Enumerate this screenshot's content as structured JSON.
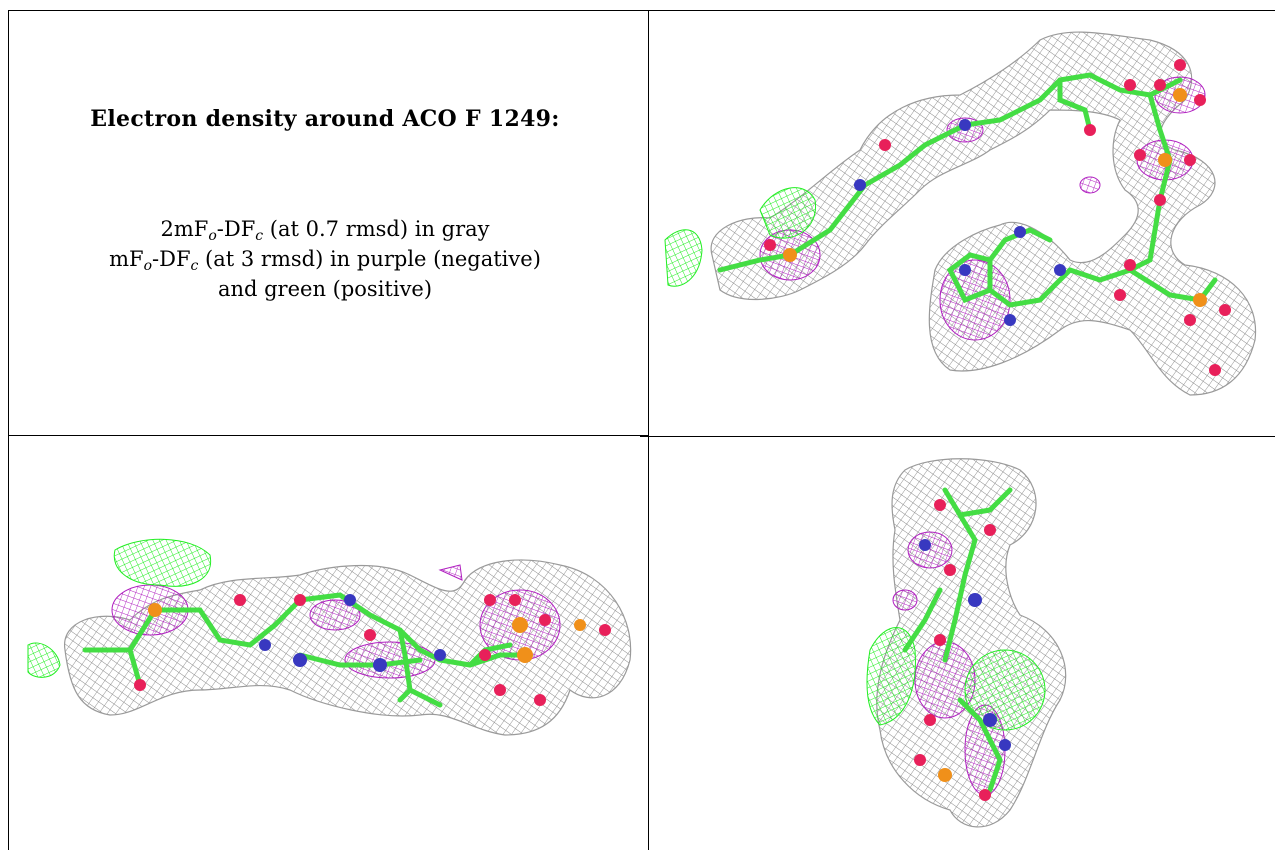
{
  "panel": {
    "title": "Electron density around ACO F 1249:",
    "legend": {
      "line1": {
        "pre": "2mF",
        "sub1": "o",
        "mid": "-DF",
        "sub2": "c",
        "post": " (at 0.7 rmsd) in gray"
      },
      "line2": {
        "pre": "mF",
        "sub1": "o",
        "mid": "-DF",
        "sub2": "c",
        "post": " (at 3 rmsd) in purple (negative)"
      },
      "line3": "and green (positive)"
    }
  },
  "views": [
    {
      "name": "top-right-view"
    },
    {
      "name": "bottom-left-view"
    },
    {
      "name": "bottom-right-view"
    }
  ],
  "colors": {
    "mesh_gray": "#9a9a9a",
    "mesh_purple": "#b020c0",
    "mesh_green": "#22ee22",
    "carbon": "#44dd44",
    "oxygen": "#e8205a",
    "nitrogen": "#3838c0",
    "phosphorus": "#f0901a"
  }
}
